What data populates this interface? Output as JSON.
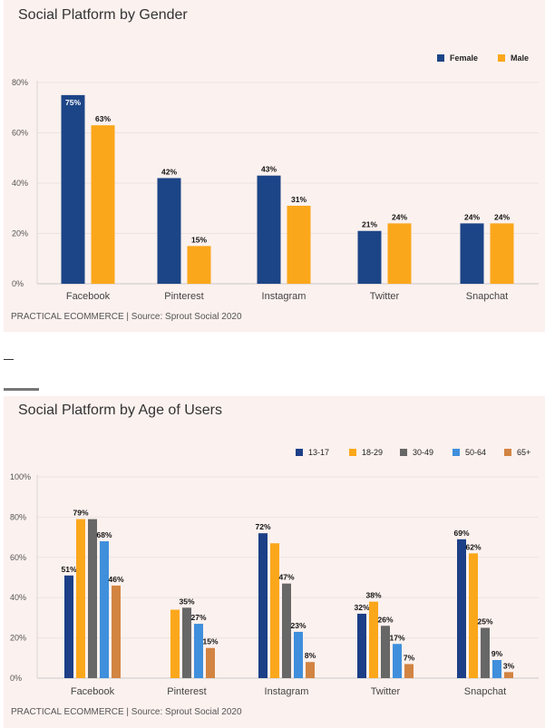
{
  "charts": [
    {
      "title": "Social Platform by Gender",
      "source": "PRACTICAL ECOMMERCE | Source: Sprout Social 2020"
    },
    {
      "title": "Social Platform by Age of Users",
      "source": "PRACTICAL ECOMMERCE | Source: Sprout Social 2020"
    }
  ],
  "chart_data": [
    {
      "type": "bar",
      "title": "Social Platform by Gender",
      "categories": [
        "Facebook",
        "Pinterest",
        "Instagram",
        "Twitter",
        "Snapchat"
      ],
      "series": [
        {
          "name": "Female",
          "color": "#1c4587",
          "values": [
            75,
            42,
            43,
            21,
            24
          ]
        },
        {
          "name": "Male",
          "color": "#fba71b",
          "values": [
            63,
            15,
            31,
            24,
            24
          ]
        }
      ],
      "yticks": [
        "0%",
        "20%",
        "40%",
        "60%",
        "80%"
      ],
      "ylim": [
        0,
        80
      ],
      "xlabel": "",
      "ylabel": "",
      "legend": "top-right",
      "grid": true
    },
    {
      "type": "bar",
      "title": "Social Platform by Age of Users",
      "categories": [
        "Facebook",
        "Pinterest",
        "Instagram",
        "Twitter",
        "Snapchat"
      ],
      "series": [
        {
          "name": "13-17",
          "color": "#1c3f87",
          "values": [
            51,
            null,
            72,
            32,
            69
          ]
        },
        {
          "name": "18-29",
          "color": "#fba71b",
          "values": [
            79,
            34,
            67,
            38,
            62
          ]
        },
        {
          "name": "30-49",
          "color": "#676767",
          "values": [
            79,
            35,
            47,
            26,
            25
          ]
        },
        {
          "name": "50-64",
          "color": "#3f8fdc",
          "values": [
            68,
            27,
            23,
            17,
            9
          ]
        },
        {
          "name": "65+",
          "color": "#d28442",
          "values": [
            46,
            15,
            8,
            7,
            3
          ]
        }
      ],
      "data_labels": [
        [
          "51%",
          "",
          "72%",
          "32%",
          "69%"
        ],
        [
          "79%",
          "",
          "",
          "38%",
          "62%"
        ],
        [
          "",
          "35%",
          "47%",
          "26%",
          "25%"
        ],
        [
          "68%",
          "27%",
          "23%",
          "17%",
          "9%"
        ],
        [
          "46%",
          "15%",
          "8%",
          "7%",
          "3%"
        ]
      ],
      "yticks": [
        "0%",
        "20%",
        "40%",
        "60%",
        "80%",
        "100%"
      ],
      "ylim": [
        0,
        100
      ],
      "xlabel": "",
      "ylabel": "",
      "legend": "top-right",
      "grid": true
    }
  ]
}
